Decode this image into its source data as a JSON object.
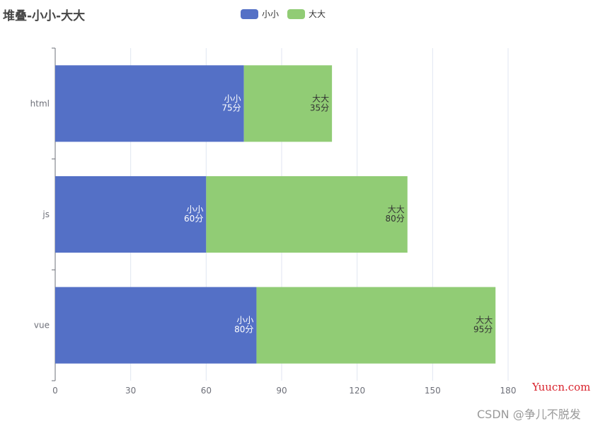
{
  "title": "堆叠-小小-大大",
  "watermarks": {
    "site": "Yuucn.com",
    "csdn": "CSDN @争儿不脱发"
  },
  "chart_data": {
    "type": "bar",
    "orientation": "horizontal",
    "stacked": true,
    "title": "堆叠-小小-大大",
    "categories": [
      "html",
      "js",
      "vue"
    ],
    "series": [
      {
        "name": "小小",
        "values": [
          75,
          60,
          80
        ],
        "color": "#5470c6",
        "label_color": "#ffffff",
        "labels": [
          "小小\n75分",
          "小小\n60分",
          "小小\n80分"
        ]
      },
      {
        "name": "大大",
        "values": [
          35,
          80,
          95
        ],
        "color": "#91cc75",
        "label_color": "#333333",
        "labels": [
          "大大\n35分",
          "大大\n80分",
          "大大\n95分"
        ]
      }
    ],
    "x_ticks": [
      "0",
      "30",
      "60",
      "90",
      "120",
      "150",
      "180"
    ],
    "xlim": [
      0,
      180
    ],
    "grid": "vertical",
    "legend_position": "top-center"
  }
}
